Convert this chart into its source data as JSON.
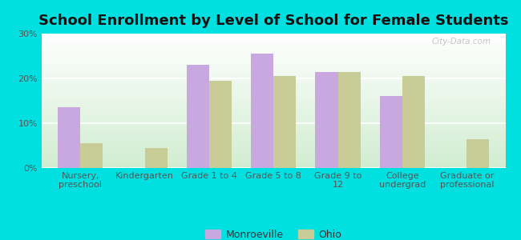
{
  "title": "School Enrollment by Level of School for Female Students",
  "categories": [
    "Nursery,\npreschool",
    "Kindergarten",
    "Grade 1 to 4",
    "Grade 5 to 8",
    "Grade 9 to\n12",
    "College\nundergrad",
    "Graduate or\nprofessional"
  ],
  "monroeville": [
    13.5,
    0,
    23.0,
    25.5,
    21.5,
    16.0,
    0
  ],
  "ohio": [
    5.5,
    4.5,
    19.5,
    20.5,
    21.5,
    20.5,
    6.5
  ],
  "monroeville_color": "#c9a8e0",
  "ohio_color": "#c8cc96",
  "background_outer": "#00e0e0",
  "background_inner_top": "#ffffff",
  "background_inner_bottom": "#d4edda",
  "ylim": [
    0,
    30
  ],
  "yticks": [
    0,
    10,
    20,
    30
  ],
  "ytick_labels": [
    "0%",
    "10%",
    "20%",
    "30%"
  ],
  "bar_width": 0.35,
  "legend_labels": [
    "Monroeville",
    "Ohio"
  ],
  "title_fontsize": 13,
  "tick_fontsize": 8
}
